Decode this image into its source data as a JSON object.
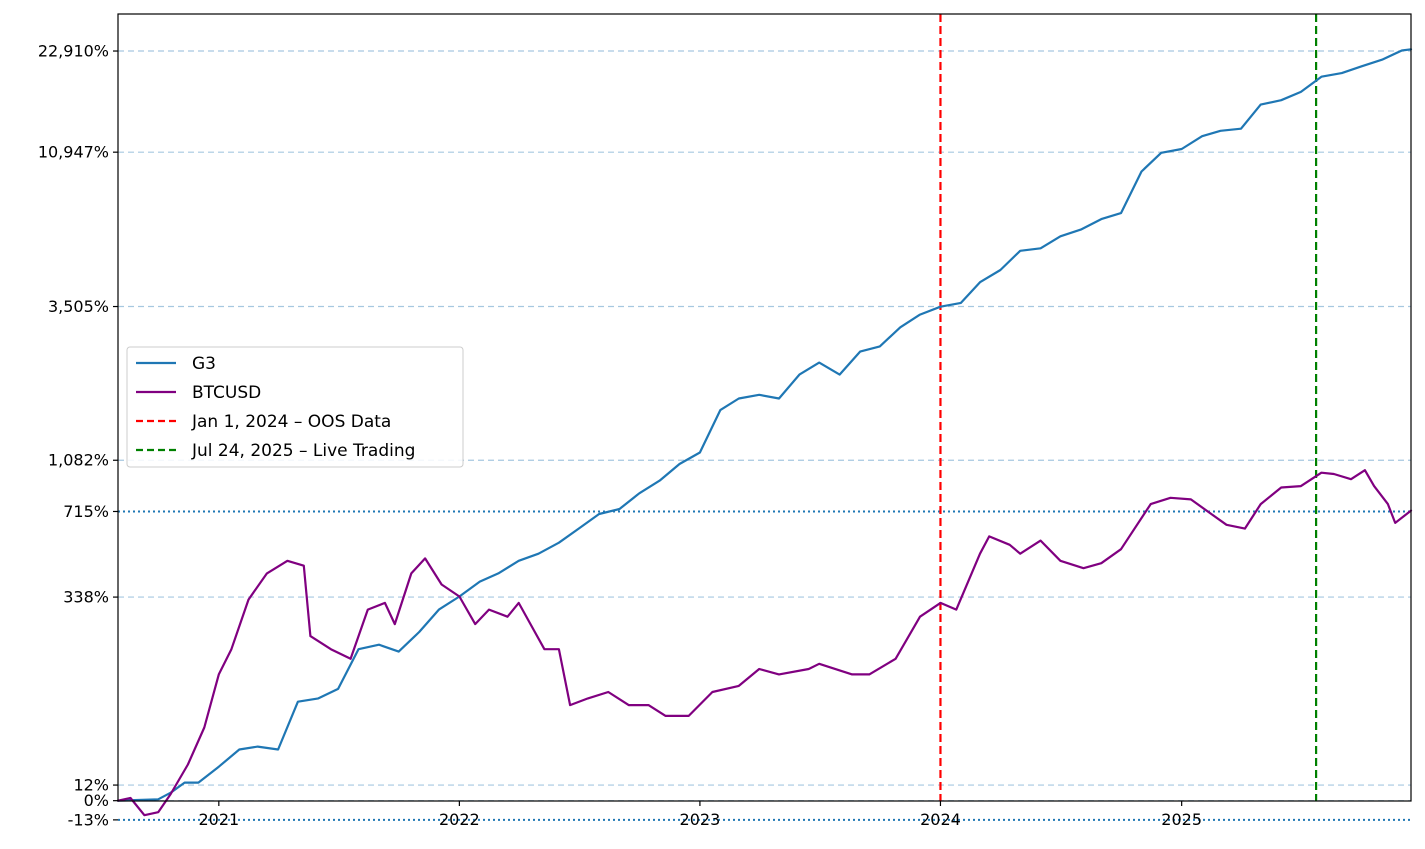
{
  "chart_data": {
    "type": "line",
    "title": "",
    "xlabel": "",
    "ylabel": "",
    "x_range": [
      "2020-08-01",
      "2025-12-15"
    ],
    "y_scale": "log1p",
    "ylim": [
      -0.23,
      30000
    ],
    "x_ticks": [
      {
        "date": "2021-01-01",
        "label": "2021"
      },
      {
        "date": "2022-01-01",
        "label": "2022"
      },
      {
        "date": "2023-01-01",
        "label": "2023"
      },
      {
        "date": "2024-01-01",
        "label": "2024"
      },
      {
        "date": "2025-01-01",
        "label": "2025"
      }
    ],
    "y_ticks": [
      {
        "value": 22910,
        "label": "22,910%"
      },
      {
        "value": 10947,
        "label": "10,947%"
      },
      {
        "value": 3505,
        "label": "3,505%"
      },
      {
        "value": 1082,
        "label": "1,082%"
      },
      {
        "value": 715,
        "label": "715%"
      },
      {
        "value": 338,
        "label": "338%"
      },
      {
        "value": 12,
        "label": "12%"
      },
      {
        "value": 0,
        "label": "0%"
      },
      {
        "value": -13,
        "label": "-13%"
      }
    ],
    "h_lines": [
      {
        "value": 22910,
        "style": "dashed",
        "color": "#a6c8e0"
      },
      {
        "value": 10947,
        "style": "dashed",
        "color": "#a6c8e0"
      },
      {
        "value": 3505,
        "style": "dashed",
        "color": "#a6c8e0"
      },
      {
        "value": 1082,
        "style": "dashed",
        "color": "#a6c8e0"
      },
      {
        "value": 338,
        "style": "dashed",
        "color": "#a6c8e0"
      },
      {
        "value": 12,
        "style": "dashed",
        "color": "#a6c8e0"
      },
      {
        "value": 0,
        "style": "dashed",
        "color": "#a6c8e0"
      },
      {
        "value": 715,
        "style": "dotted",
        "color": "#1f77b4"
      },
      {
        "value": -13,
        "style": "dotted",
        "color": "#1f77b4"
      }
    ],
    "v_lines": [
      {
        "date": "2024-01-01",
        "color": "#ff0000",
        "label": "Jan 1, 2024 – OOS Data"
      },
      {
        "date": "2025-07-24",
        "color": "#008000",
        "label": "Jul 24, 2025 – Live Trading"
      }
    ],
    "series": [
      {
        "name": "G3",
        "color": "#1f77b4",
        "points": [
          [
            "2020-08-01",
            0
          ],
          [
            "2020-09-01",
            0.5
          ],
          [
            "2020-10-01",
            1
          ],
          [
            "2020-10-20",
            6
          ],
          [
            "2020-11-10",
            14
          ],
          [
            "2020-12-01",
            14
          ],
          [
            "2021-01-01",
            28
          ],
          [
            "2021-02-01",
            45
          ],
          [
            "2021-03-01",
            48
          ],
          [
            "2021-04-01",
            45
          ],
          [
            "2021-05-01",
            105
          ],
          [
            "2021-06-01",
            110
          ],
          [
            "2021-07-01",
            125
          ],
          [
            "2021-08-01",
            200
          ],
          [
            "2021-09-01",
            210
          ],
          [
            "2021-10-01",
            195
          ],
          [
            "2021-11-01",
            240
          ],
          [
            "2021-12-01",
            300
          ],
          [
            "2022-01-01",
            340
          ],
          [
            "2022-02-01",
            390
          ],
          [
            "2022-03-01",
            420
          ],
          [
            "2022-04-01",
            470
          ],
          [
            "2022-05-01",
            500
          ],
          [
            "2022-06-01",
            550
          ],
          [
            "2022-07-01",
            620
          ],
          [
            "2022-08-01",
            700
          ],
          [
            "2022-09-01",
            730
          ],
          [
            "2022-10-01",
            830
          ],
          [
            "2022-11-01",
            920
          ],
          [
            "2022-12-01",
            1050
          ],
          [
            "2023-01-01",
            1150
          ],
          [
            "2023-02-01",
            1600
          ],
          [
            "2023-03-01",
            1750
          ],
          [
            "2023-04-01",
            1800
          ],
          [
            "2023-05-01",
            1750
          ],
          [
            "2023-06-01",
            2100
          ],
          [
            "2023-07-01",
            2300
          ],
          [
            "2023-08-01",
            2100
          ],
          [
            "2023-09-01",
            2500
          ],
          [
            "2023-10-01",
            2600
          ],
          [
            "2023-11-01",
            3000
          ],
          [
            "2023-12-01",
            3300
          ],
          [
            "2024-01-01",
            3500
          ],
          [
            "2024-02-01",
            3600
          ],
          [
            "2024-03-01",
            4200
          ],
          [
            "2024-04-01",
            4600
          ],
          [
            "2024-05-01",
            5300
          ],
          [
            "2024-06-01",
            5400
          ],
          [
            "2024-07-01",
            5900
          ],
          [
            "2024-08-01",
            6200
          ],
          [
            "2024-09-01",
            6700
          ],
          [
            "2024-10-01",
            7000
          ],
          [
            "2024-11-01",
            9500
          ],
          [
            "2024-12-01",
            10900
          ],
          [
            "2025-01-01",
            11200
          ],
          [
            "2025-02-01",
            12300
          ],
          [
            "2025-03-01",
            12800
          ],
          [
            "2025-04-01",
            13000
          ],
          [
            "2025-05-01",
            15500
          ],
          [
            "2025-06-01",
            16000
          ],
          [
            "2025-07-01",
            17000
          ],
          [
            "2025-08-01",
            19000
          ],
          [
            "2025-09-01",
            19500
          ],
          [
            "2025-10-01",
            20500
          ],
          [
            "2025-11-01",
            21500
          ],
          [
            "2025-12-01",
            23000
          ],
          [
            "2025-12-15",
            23200
          ]
        ]
      },
      {
        "name": "BTCUSD",
        "color": "#800080",
        "points": [
          [
            "2020-08-01",
            0
          ],
          [
            "2020-08-20",
            2
          ],
          [
            "2020-09-10",
            -10
          ],
          [
            "2020-10-01",
            -8
          ],
          [
            "2020-10-20",
            5
          ],
          [
            "2020-11-15",
            30
          ],
          [
            "2020-12-10",
            70
          ],
          [
            "2021-01-01",
            150
          ],
          [
            "2021-01-20",
            200
          ],
          [
            "2021-02-15",
            330
          ],
          [
            "2021-03-15",
            420
          ],
          [
            "2021-04-15",
            470
          ],
          [
            "2021-05-10",
            450
          ],
          [
            "2021-05-20",
            230
          ],
          [
            "2021-06-20",
            200
          ],
          [
            "2021-07-20",
            180
          ],
          [
            "2021-08-15",
            300
          ],
          [
            "2021-09-10",
            320
          ],
          [
            "2021-09-25",
            260
          ],
          [
            "2021-10-20",
            420
          ],
          [
            "2021-11-10",
            480
          ],
          [
            "2021-12-05",
            380
          ],
          [
            "2022-01-01",
            340
          ],
          [
            "2022-01-25",
            260
          ],
          [
            "2022-02-15",
            300
          ],
          [
            "2022-03-15",
            280
          ],
          [
            "2022-04-01",
            320
          ],
          [
            "2022-05-10",
            200
          ],
          [
            "2022-06-01",
            200
          ],
          [
            "2022-06-18",
            100
          ],
          [
            "2022-07-15",
            110
          ],
          [
            "2022-08-15",
            120
          ],
          [
            "2022-09-15",
            100
          ],
          [
            "2022-10-15",
            100
          ],
          [
            "2022-11-10",
            85
          ],
          [
            "2022-12-15",
            85
          ],
          [
            "2023-01-20",
            120
          ],
          [
            "2023-03-01",
            130
          ],
          [
            "2023-04-01",
            160
          ],
          [
            "2023-05-01",
            150
          ],
          [
            "2023-06-15",
            160
          ],
          [
            "2023-07-01",
            170
          ],
          [
            "2023-08-20",
            150
          ],
          [
            "2023-09-15",
            150
          ],
          [
            "2023-10-25",
            180
          ],
          [
            "2023-12-01",
            280
          ],
          [
            "2024-01-01",
            320
          ],
          [
            "2024-01-25",
            300
          ],
          [
            "2024-03-01",
            500
          ],
          [
            "2024-03-15",
            580
          ],
          [
            "2024-04-15",
            540
          ],
          [
            "2024-05-01",
            500
          ],
          [
            "2024-06-01",
            560
          ],
          [
            "2024-07-01",
            470
          ],
          [
            "2024-08-05",
            440
          ],
          [
            "2024-09-01",
            460
          ],
          [
            "2024-10-01",
            520
          ],
          [
            "2024-11-15",
            760
          ],
          [
            "2024-12-15",
            800
          ],
          [
            "2025-01-15",
            790
          ],
          [
            "2025-02-15",
            700
          ],
          [
            "2025-03-10",
            640
          ],
          [
            "2025-04-07",
            620
          ],
          [
            "2025-05-01",
            760
          ],
          [
            "2025-06-01",
            870
          ],
          [
            "2025-07-01",
            880
          ],
          [
            "2025-08-01",
            980
          ],
          [
            "2025-08-20",
            970
          ],
          [
            "2025-09-15",
            930
          ],
          [
            "2025-10-06",
            1000
          ],
          [
            "2025-10-20",
            880
          ],
          [
            "2025-11-10",
            760
          ],
          [
            "2025-11-21",
            650
          ],
          [
            "2025-12-15",
            720
          ]
        ]
      }
    ],
    "legend": {
      "placement": "center-left",
      "entries": [
        {
          "label": "G3",
          "style": "solid",
          "color": "#1f77b4"
        },
        {
          "label": "BTCUSD",
          "style": "solid",
          "color": "#800080"
        },
        {
          "label": "Jan 1, 2024 – OOS Data",
          "style": "dashed",
          "color": "#ff0000"
        },
        {
          "label": "Jul 24, 2025 – Live Trading",
          "style": "dashed",
          "color": "#008000"
        }
      ]
    }
  }
}
